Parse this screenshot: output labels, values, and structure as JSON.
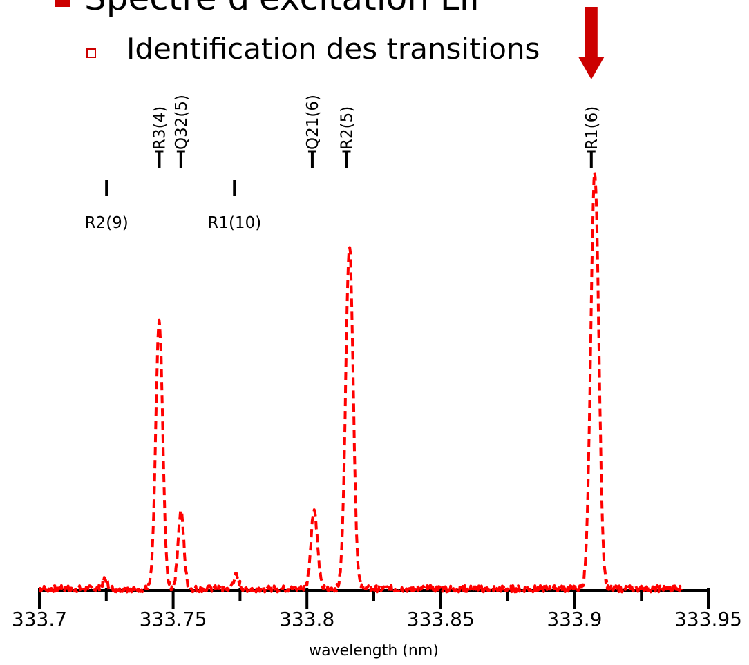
{
  "slide": {
    "heading": "Spectre d'excitation LIF",
    "subheading": "Identification des transitions",
    "accent_color": "#cc0000"
  },
  "chart_data": {
    "type": "line",
    "title": "",
    "xlabel": "wavelength (nm)",
    "ylabel": "",
    "xlim": [
      333.7,
      333.95
    ],
    "ylim": [
      0,
      1.0
    ],
    "x_ticks": [
      333.7,
      333.75,
      333.8,
      333.85,
      333.9,
      333.95
    ],
    "x_tick_labels": [
      "333.7",
      "333.75",
      "333.8",
      "333.85",
      "333.9",
      "333.95"
    ],
    "x_minor_ticks": [
      333.725,
      333.775,
      333.825,
      333.875,
      333.925
    ],
    "grid": false,
    "series": [
      {
        "line_style": "dashed",
        "color": "#ff0000",
        "peaks": [
          {
            "center": 333.7245,
            "height": 0.022,
            "width": 0.0009
          },
          {
            "center": 333.7448,
            "height": 0.64,
            "width": 0.0013
          },
          {
            "center": 333.7529,
            "height": 0.185,
            "width": 0.0011
          },
          {
            "center": 333.7735,
            "height": 0.03,
            "width": 0.0011
          },
          {
            "center": 333.8027,
            "height": 0.19,
            "width": 0.0012
          },
          {
            "center": 333.8159,
            "height": 0.825,
            "width": 0.0014
          },
          {
            "center": 333.9076,
            "height": 1.0,
            "width": 0.0015
          }
        ],
        "x_range": [
          333.7,
          333.94
        ]
      }
    ],
    "annotations": {
      "upper": [
        {
          "label": "R3(4)",
          "x": 333.7448
        },
        {
          "label": "Q32(5)",
          "x": 333.7529
        },
        {
          "label": "Q21(6)",
          "x": 333.802
        },
        {
          "label": "R2(5)",
          "x": 333.8148
        },
        {
          "label": "R1(6)",
          "x": 333.9063
        }
      ],
      "lower": [
        {
          "label": "R2(9)",
          "x": 333.7251
        },
        {
          "label": "R1(10)",
          "x": 333.7729
        }
      ],
      "highlight_arrow_x": 333.9063
    }
  }
}
